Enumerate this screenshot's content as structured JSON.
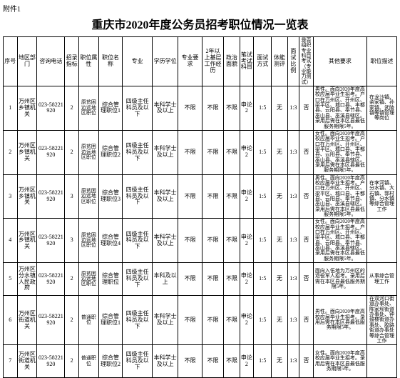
{
  "attachment_label": "附件1",
  "title": "重庆市2020年度公务员招考职位情况一览表",
  "headers": {
    "seq": "序号",
    "region": "地区部门",
    "phone": "咨询电话",
    "quota": "招录指标",
    "attr": "职位属性",
    "posname": "职位名称",
    "major": "专业",
    "edu": "学历学位",
    "req": "专业要求",
    "exp": "2年以上基层工作经历",
    "pol": "政治面貌",
    "exam": "笔试考试科目",
    "method": "面试方式",
    "body": "体能测评",
    "ratio": "面试比例",
    "prof": "是否组织专业科目考试（专业能力测试）",
    "other": "其他要求",
    "desc": "职位描述"
  },
  "rows": [
    {
      "seq": "1",
      "region": "万州区乡镇机关",
      "phone": "023-58221920",
      "quota": "2",
      "attr": "原贫困边远地区职位",
      "posname": "综合管理职位1",
      "major": "四级主任科员及以下",
      "edu": "本科学士及以上",
      "req": "不限",
      "exp": "不限",
      "pol": "不限",
      "exam": "申论2",
      "method": "1:5",
      "body": "无",
      "ratio": "1:3",
      "prof": "否",
      "other": "男性。面向2020年度高校应届毕业生招考。户口在万州区、开州区、梁平区、城口县、丰都县、云阳县、奉节县、巫山县、巫溪县辖区。录用后需在本区县最低服务期限5年。",
      "desc": "在龙沙镇、余家镇、孙家镇、武陵镇等镇管理等岗位"
    },
    {
      "seq": "2",
      "region": "万州区乡镇机关",
      "phone": "023-58221920",
      "quota": "2",
      "attr": "原贫困边远地区职位",
      "posname": "综合管理职位2",
      "major": "四级主任科员及以下",
      "edu": "本科学士及以上",
      "req": "不限",
      "exp": "不限",
      "pol": "不限",
      "exam": "申论2",
      "method": "1:5",
      "body": "无",
      "ratio": "1:3",
      "prof": "否",
      "other": "女性。面向2020年度高校应届毕业生招考。户口在万州区、开州区、梁平区、城口县、丰都县、云阳县、奉节县、巫山县、巫溪县辖区。录用后需在本区县最低服务期限5年。",
      "desc": ""
    },
    {
      "seq": "3",
      "region": "万州区乡镇机关",
      "phone": "023-58221920",
      "quota": "3",
      "attr": "原贫困边远地区职位",
      "posname": "综合管理职位3",
      "major": "四级主任科员及以下",
      "edu": "本科学士及以上",
      "req": "不限",
      "exp": "不限",
      "pol": "不限",
      "exam": "申论2",
      "method": "1:5",
      "body": "无",
      "ratio": "1:3",
      "prof": "否",
      "other": "男性。面向2020年度高校应届毕业生招考。户口在万州区、开州区、梁平区、城口县、丰都县、云阳县、奉节县、巫山县、巫溪县辖区。录用后需在本区县最低服务期限5年。",
      "desc": "在李河镇、分水镇、大石镇、郭村镇、分水镇等综合管理工作"
    },
    {
      "seq": "4",
      "region": "万州区乡镇机关",
      "phone": "023-58221920",
      "quota": "3",
      "attr": "原贫困边远地区职位",
      "posname": "综合管理职位4",
      "major": "四级主任科员及以下",
      "edu": "本科学士及以上",
      "req": "不限",
      "exp": "不限",
      "pol": "不限",
      "exam": "申论2",
      "method": "1:5",
      "body": "无",
      "ratio": "1:3",
      "prof": "否",
      "other": "女性。面向2020年度高校应届毕业生招考。户口在万州区、开州区、梁平区、城口县、丰都县、云阳县、奉节县、巫山县、巫溪县辖区。录用后需在本区县最低服务期限5年。",
      "desc": ""
    },
    {
      "seq": "5",
      "region": "万州区分水镇人民政府",
      "phone": "023-58221920",
      "quota": "2",
      "attr": "原贫困边远地区职位",
      "posname": "综合管理职位",
      "major": "四级主任科员及以下",
      "edu": "本科及以上",
      "req": "不限",
      "exp": "不限",
      "pol": "不限",
      "exam": "申论2",
      "method": "1:5",
      "body": "无",
      "ratio": "1:3",
      "prof": "否",
      "other": "面向入伍地为万州区的退役军人招考。录用后需在本区县最低服务期限5年。",
      "desc": "从事综合管理工作"
    },
    {
      "seq": "6",
      "region": "万州区街道机关",
      "phone": "023-58221920",
      "quota": "2",
      "attr": "普通职位",
      "posname": "综合管理职位1",
      "major": "四级主任科员及以下",
      "edu": "本科学士及以上",
      "req": "不限",
      "exp": "不限",
      "pol": "不限",
      "exam": "申论2",
      "method": "1:5",
      "body": "无",
      "ratio": "1:3",
      "prof": "否",
      "other": "男性。面向2020年度高校应届毕业生招考。录用后需在本区县最低服务期限5年。",
      "desc": "在双河口街道办事处、陈家坝街道办事处、钟鼓楼街道办事处、胶路街道办事处等综合管理工作"
    },
    {
      "seq": "7",
      "region": "万州区街道机关",
      "phone": "023-58221920",
      "quota": "2",
      "attr": "普通职位",
      "posname": "综合管理职位2",
      "major": "四级主任科员及以下",
      "edu": "本科学士及以上",
      "req": "不限",
      "exp": "不限",
      "pol": "不限",
      "exam": "申论2",
      "method": "1:5",
      "body": "无",
      "ratio": "1:3",
      "prof": "否",
      "other": "女性。面向2020年度高校应届毕业生招考。录用后需在本区县最低服务期限5年。",
      "desc": ""
    }
  ],
  "colors": {
    "border": "#000000",
    "background": "#ffffff",
    "text": "#000000"
  },
  "fonts": {
    "body_size": 8,
    "title_size": 16,
    "family": "SimSun"
  }
}
